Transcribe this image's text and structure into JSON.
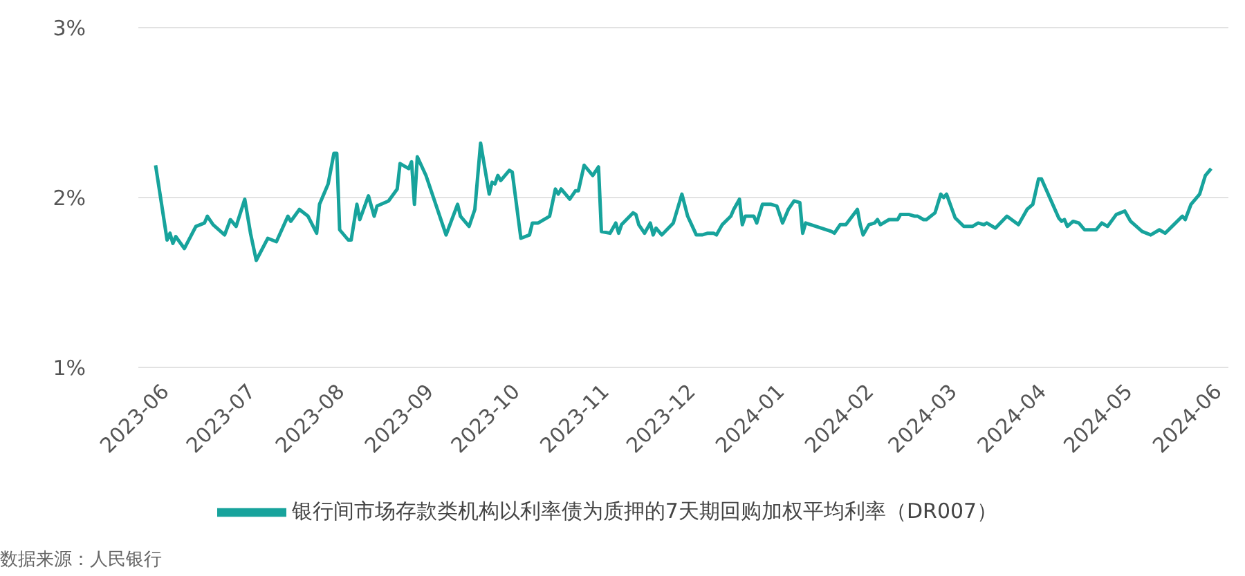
{
  "chart_data": {
    "type": "line",
    "x": [
      "2023-05-30",
      "2023-06-03",
      "2023-06-04",
      "2023-06-05",
      "2023-06-06",
      "2023-06-09",
      "2023-06-13",
      "2023-06-16",
      "2023-06-17",
      "2023-06-19",
      "2023-06-23",
      "2023-06-25",
      "2023-06-27",
      "2023-06-30",
      "2023-07-02",
      "2023-07-04",
      "2023-07-08",
      "2023-07-11",
      "2023-07-15",
      "2023-07-16",
      "2023-07-19",
      "2023-07-22",
      "2023-07-25",
      "2023-07-26",
      "2023-07-29",
      "2023-07-31",
      "2023-08-01",
      "2023-08-02",
      "2023-08-05",
      "2023-08-06",
      "2023-08-08",
      "2023-08-09",
      "2023-08-12",
      "2023-08-14",
      "2023-08-15",
      "2023-08-19",
      "2023-08-22",
      "2023-08-23",
      "2023-08-26",
      "2023-08-27",
      "2023-08-28",
      "2023-08-29",
      "2023-09-01",
      "2023-09-08",
      "2023-09-12",
      "2023-09-13",
      "2023-09-16",
      "2023-09-18",
      "2023-09-20",
      "2023-09-23",
      "2023-09-24",
      "2023-09-25",
      "2023-09-26",
      "2023-09-27",
      "2023-09-30",
      "2023-10-01",
      "2023-10-04",
      "2023-10-07",
      "2023-10-08",
      "2023-10-10",
      "2023-10-14",
      "2023-10-16",
      "2023-10-17",
      "2023-10-18",
      "2023-10-21",
      "2023-10-23",
      "2023-10-24",
      "2023-10-26",
      "2023-10-29",
      "2023-10-31",
      "2023-11-01",
      "2023-11-04",
      "2023-11-06",
      "2023-11-07",
      "2023-11-08",
      "2023-11-12",
      "2023-11-13",
      "2023-11-14",
      "2023-11-16",
      "2023-11-18",
      "2023-11-19",
      "2023-11-20",
      "2023-11-22",
      "2023-11-26",
      "2023-11-29",
      "2023-12-01",
      "2023-12-04",
      "2023-12-06",
      "2023-12-08",
      "2023-12-10",
      "2023-12-11",
      "2023-12-13",
      "2023-12-16",
      "2023-12-17",
      "2023-12-19",
      "2023-12-20",
      "2023-12-21",
      "2023-12-24",
      "2023-12-25",
      "2023-12-27",
      "2023-12-30",
      "2024-01-01",
      "2024-01-03",
      "2024-01-05",
      "2024-01-07",
      "2024-01-09",
      "2024-01-10",
      "2024-01-11",
      "2024-01-20",
      "2024-01-21",
      "2024-01-23",
      "2024-01-25",
      "2024-01-29",
      "2024-01-30",
      "2024-01-31",
      "2024-02-02",
      "2024-02-04",
      "2024-02-05",
      "2024-02-06",
      "2024-02-09",
      "2024-02-12",
      "2024-02-13",
      "2024-02-16",
      "2024-02-18",
      "2024-02-19",
      "2024-02-21",
      "2024-02-22",
      "2024-02-25",
      "2024-02-27",
      "2024-02-28",
      "2024-02-29",
      "2024-03-03",
      "2024-03-06",
      "2024-03-09",
      "2024-03-11",
      "2024-03-13",
      "2024-03-14",
      "2024-03-17",
      "2024-03-21",
      "2024-03-25",
      "2024-03-28",
      "2024-03-30",
      "2024-04-01",
      "2024-04-02",
      "2024-04-08",
      "2024-04-09",
      "2024-04-10",
      "2024-04-11",
      "2024-04-13",
      "2024-04-15",
      "2024-04-17",
      "2024-04-21",
      "2024-04-23",
      "2024-04-25",
      "2024-04-28",
      "2024-05-01",
      "2024-05-03",
      "2024-05-07",
      "2024-05-10",
      "2024-05-13",
      "2024-05-15",
      "2024-05-18",
      "2024-05-21",
      "2024-05-22",
      "2024-05-24",
      "2024-05-27",
      "2024-05-29",
      "2024-05-30",
      "2024-05-31"
    ],
    "series": [
      {
        "name": "银行间市场存款类机构以利率债为质押的7天期回购加权平均利率（DR007）",
        "color": "#17a39c",
        "values": [
          2.19,
          1.75,
          1.79,
          1.73,
          1.77,
          1.7,
          1.83,
          1.85,
          1.89,
          1.84,
          1.78,
          1.87,
          1.83,
          1.99,
          1.79,
          1.63,
          1.76,
          1.74,
          1.89,
          1.86,
          1.93,
          1.89,
          1.79,
          1.96,
          2.08,
          2.26,
          2.26,
          1.81,
          1.75,
          1.75,
          1.96,
          1.87,
          2.01,
          1.89,
          1.95,
          1.98,
          2.05,
          2.2,
          2.17,
          2.21,
          1.96,
          2.24,
          2.13,
          1.78,
          1.96,
          1.89,
          1.83,
          1.93,
          2.32,
          2.02,
          2.09,
          2.08,
          2.13,
          2.1,
          2.16,
          2.15,
          1.76,
          1.78,
          1.85,
          1.85,
          1.89,
          2.05,
          2.02,
          2.05,
          1.99,
          2.04,
          2.04,
          2.19,
          2.13,
          2.18,
          1.8,
          1.79,
          1.85,
          1.79,
          1.84,
          1.91,
          1.9,
          1.84,
          1.79,
          1.85,
          1.78,
          1.82,
          1.78,
          1.85,
          2.02,
          1.89,
          1.78,
          1.78,
          1.79,
          1.79,
          1.78,
          1.84,
          1.89,
          1.93,
          1.99,
          1.84,
          1.89,
          1.89,
          1.85,
          1.96,
          1.96,
          1.95,
          1.85,
          1.93,
          1.98,
          1.97,
          1.79,
          1.85,
          1.8,
          1.79,
          1.84,
          1.84,
          1.93,
          1.84,
          1.78,
          1.84,
          1.85,
          1.87,
          1.84,
          1.87,
          1.87,
          1.9,
          1.9,
          1.89,
          1.89,
          1.87,
          1.87,
          1.91,
          2.02,
          2.0,
          2.02,
          1.88,
          1.83,
          1.83,
          1.85,
          1.84,
          1.85,
          1.82,
          1.89,
          1.84,
          1.93,
          1.96,
          2.11,
          2.11,
          1.88,
          1.86,
          1.87,
          1.83,
          1.86,
          1.85,
          1.81,
          1.81,
          1.85,
          1.83,
          1.9,
          1.92,
          1.86,
          1.8,
          1.78,
          1.81,
          1.79,
          1.84,
          1.89,
          1.87,
          1.96,
          2.02,
          2.13,
          2.15,
          2.17
        ]
      }
    ],
    "xlim": [
      "2023-05-24",
      "2024-06-06"
    ],
    "xticks": [
      "2023-06",
      "2023-07",
      "2023-08",
      "2023-09",
      "2023-10",
      "2023-11",
      "2023-12",
      "2024-01",
      "2024-02",
      "2024-03",
      "2024-04",
      "2024-05",
      "2024-06"
    ],
    "ylim": [
      1,
      3
    ],
    "yticks": [
      {
        "value": 1,
        "label": "1%"
      },
      {
        "value": 2,
        "label": "2%"
      },
      {
        "value": 3,
        "label": "3%"
      }
    ],
    "grid": "y",
    "legend": "bottom",
    "annotations": [
      "数据来源：人民银行"
    ]
  }
}
